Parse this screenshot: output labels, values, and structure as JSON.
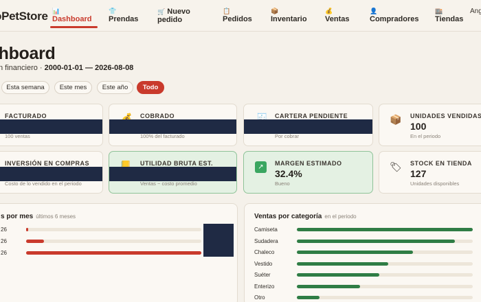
{
  "nav": {
    "brand": "oPetStore",
    "items": [
      {
        "icon": "📊",
        "label": "Dashboard",
        "active": true
      },
      {
        "icon": "👕",
        "label": "Prendas"
      },
      {
        "icon": "🛒",
        "label": "Nuevo pedido"
      },
      {
        "icon": "📋",
        "label": "Pedidos"
      },
      {
        "icon": "📦",
        "label": "Inventario"
      },
      {
        "icon": "💰",
        "label": "Ventas"
      },
      {
        "icon": "👤",
        "label": "Compradores"
      },
      {
        "icon": "🏬",
        "label": "Tiendas"
      }
    ],
    "language": "Ang"
  },
  "header": {
    "title": "shboard",
    "subtitle_prefix": "n financiero · ",
    "date_range": "2000-01-01 — 2026-08-08"
  },
  "filters": [
    "Esta semana",
    "Este mes",
    "Este año",
    "Todo"
  ],
  "filters_active": "Todo",
  "kpis_row1": [
    {
      "label": "FACTURADO",
      "value": "",
      "sub": "100 ventas",
      "redacted": true
    },
    {
      "label": "COBRADO",
      "value": "",
      "sub": "100% del facturado",
      "redacted": true,
      "icon": "💰"
    },
    {
      "label": "CARTERA PENDIENTE",
      "value": "",
      "sub": "Por cobrar",
      "redacted": true,
      "icon": "🧾"
    },
    {
      "label": "UNIDADES VENDIDAS",
      "value": "100",
      "sub": "En el periodo",
      "icon": "📦"
    }
  ],
  "kpis_row2": [
    {
      "label": "INVERSIÓN EN COMPRAS",
      "value": "",
      "sub": "Costo de lo vendido en el periodo",
      "redacted": true
    },
    {
      "label": "UTILIDAD BRUTA EST.",
      "value": "",
      "sub": "Ventas − costo promedio",
      "redacted": true,
      "icon": "📒",
      "highlight": true
    },
    {
      "label": "MARGEN ESTIMADO",
      "value": "32.4%",
      "sub": "Bueno",
      "icon": "📈",
      "highlight": true
    },
    {
      "label": "STOCK EN TIENDA",
      "value": "127",
      "sub": "Unidades disponibles",
      "icon": "🏷"
    }
  ],
  "sales_by_month": {
    "title": "s por mes",
    "subtitle": "últimos 6 meses",
    "rows": [
      {
        "label": "26",
        "fraction": 0.01
      },
      {
        "label": "26",
        "fraction": 0.1
      },
      {
        "label": "26",
        "fraction": 1.0
      }
    ]
  },
  "sales_by_category": {
    "title": "Ventas por categoría",
    "subtitle": "en el periodo",
    "rows": [
      {
        "label": "Camiseta",
        "fraction": 1.0
      },
      {
        "label": "Sudadera",
        "fraction": 0.9
      },
      {
        "label": "Chaleco",
        "fraction": 0.66
      },
      {
        "label": "Vestido",
        "fraction": 0.52
      },
      {
        "label": "Suéter",
        "fraction": 0.47
      },
      {
        "label": "Enterizo",
        "fraction": 0.36
      },
      {
        "label": "Otro",
        "fraction": 0.13
      }
    ]
  },
  "colors": {
    "accent": "#c93a2c",
    "bar_green": "#2f7d45",
    "redaction": "#1f2a44"
  }
}
